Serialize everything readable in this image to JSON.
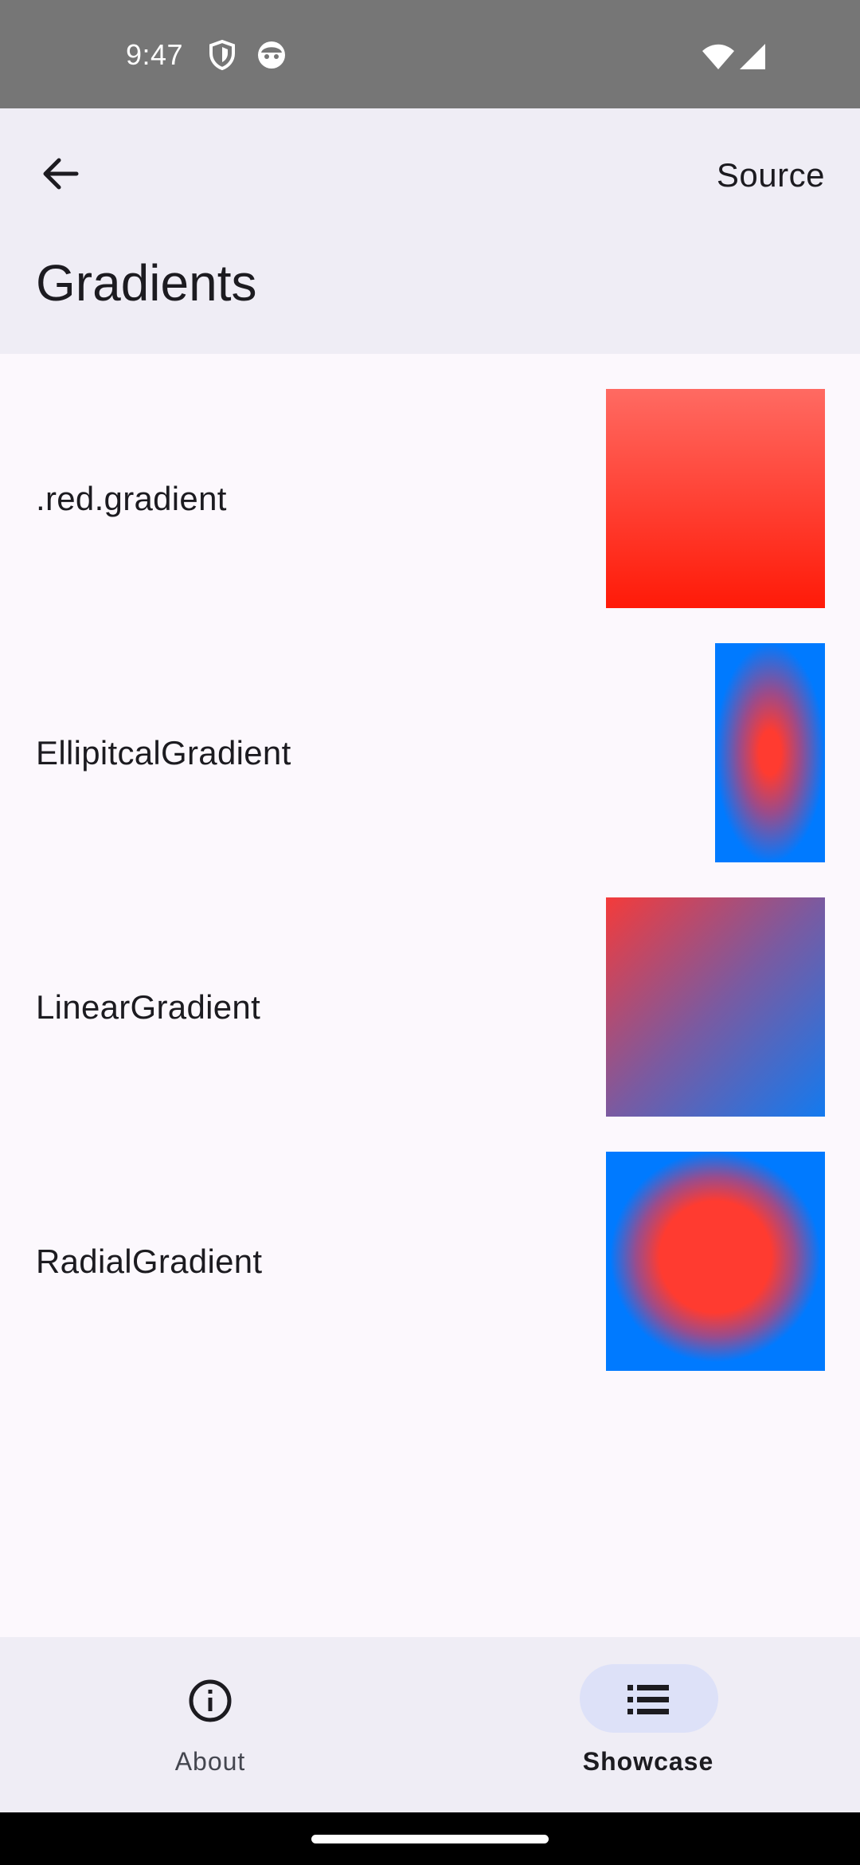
{
  "status": {
    "time": "9:47",
    "icons": [
      "shield-icon",
      "face-icon",
      "wifi-icon",
      "signal-icon"
    ]
  },
  "app_bar": {
    "back_icon": "arrow-left-icon",
    "action_label": "Source",
    "title": "Gradients"
  },
  "rows": [
    {
      "label": ".red.gradient",
      "swatch": "vertical-red-gradient"
    },
    {
      "label": "EllipitcalGradient",
      "swatch": "elliptical-red-blue-gradient"
    },
    {
      "label": "LinearGradient",
      "swatch": "diagonal-red-blue-gradient"
    },
    {
      "label": "RadialGradient",
      "swatch": "radial-red-blue-gradient"
    }
  ],
  "bottom_nav": {
    "items": [
      {
        "label": "About",
        "icon": "info-icon",
        "selected": false
      },
      {
        "label": "Showcase",
        "icon": "list-icon",
        "selected": true
      }
    ]
  },
  "colors": {
    "red": "#ff3b30",
    "blue": "#007aff",
    "surface": "#fcf8fd",
    "app_bar": "#efedf5",
    "indicator": "#dde1f8"
  }
}
